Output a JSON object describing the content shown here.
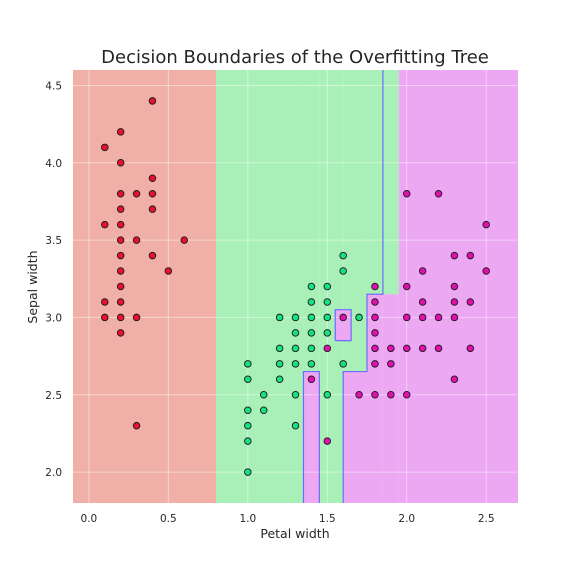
{
  "chart_data": {
    "type": "scatter",
    "title": "Decision Boundaries of the Overfitting Tree",
    "xlabel": "Petal width",
    "ylabel": "Sepal width",
    "xlim": [
      -0.1,
      2.7
    ],
    "ylim": [
      1.8,
      4.6
    ],
    "xticks": [
      "0.0",
      "0.5",
      "1.0",
      "1.5",
      "2.0",
      "2.5"
    ],
    "yticks": [
      "2.0",
      "2.5",
      "3.0",
      "3.5",
      "4.0",
      "4.5"
    ],
    "grid": true,
    "region_colors": {
      "class0": "#f0b0a8",
      "class1": "#a8f0b8",
      "class2": "#eca8f2"
    },
    "boundary_color": "#6b6bff",
    "decision_regions": [
      {
        "class": 0,
        "x": [
          -0.1,
          0.8
        ],
        "y": [
          1.8,
          4.6
        ]
      },
      {
        "class": 1,
        "x": [
          0.8,
          1.35
        ],
        "y": [
          1.8,
          4.6
        ]
      },
      {
        "class": 1,
        "x": [
          1.35,
          1.45
        ],
        "y": [
          2.65,
          4.6
        ]
      },
      {
        "class": 2,
        "x": [
          1.35,
          1.45
        ],
        "y": [
          1.8,
          2.65
        ]
      },
      {
        "class": 1,
        "x": [
          1.45,
          1.6
        ],
        "y": [
          1.8,
          4.6
        ]
      },
      {
        "class": 1,
        "x": [
          1.6,
          1.75
        ],
        "y": [
          2.65,
          4.6
        ]
      },
      {
        "class": 2,
        "x": [
          1.6,
          1.75
        ],
        "y": [
          1.8,
          2.65
        ]
      },
      {
        "class": 2,
        "x": [
          1.55,
          1.65
        ],
        "y": [
          2.85,
          3.05
        ]
      },
      {
        "class": 1,
        "x": [
          1.75,
          1.85
        ],
        "y": [
          3.15,
          4.6
        ]
      },
      {
        "class": 2,
        "x": [
          1.75,
          1.85
        ],
        "y": [
          1.8,
          3.15
        ]
      },
      {
        "class": 1,
        "x": [
          1.85,
          1.95
        ],
        "y": [
          3.15,
          4.6
        ]
      },
      {
        "class": 2,
        "x": [
          1.85,
          1.95
        ],
        "y": [
          1.8,
          3.15
        ]
      },
      {
        "class": 2,
        "x": [
          1.95,
          2.7
        ],
        "y": [
          1.8,
          4.6
        ]
      }
    ],
    "series": [
      {
        "class": 0,
        "color": "#e8102e",
        "points": [
          [
            0.4,
            4.4
          ],
          [
            0.2,
            4.2
          ],
          [
            0.1,
            4.1
          ],
          [
            0.2,
            4.0
          ],
          [
            0.4,
            3.9
          ],
          [
            0.2,
            3.8
          ],
          [
            0.3,
            3.8
          ],
          [
            0.4,
            3.8
          ],
          [
            0.2,
            3.7
          ],
          [
            0.4,
            3.7
          ],
          [
            0.1,
            3.6
          ],
          [
            0.2,
            3.6
          ],
          [
            0.2,
            3.5
          ],
          [
            0.3,
            3.5
          ],
          [
            0.6,
            3.5
          ],
          [
            0.2,
            3.4
          ],
          [
            0.4,
            3.4
          ],
          [
            0.2,
            3.3
          ],
          [
            0.5,
            3.3
          ],
          [
            0.2,
            3.2
          ],
          [
            0.1,
            3.1
          ],
          [
            0.2,
            3.1
          ],
          [
            0.1,
            3.0
          ],
          [
            0.2,
            3.0
          ],
          [
            0.3,
            3.0
          ],
          [
            0.2,
            2.9
          ],
          [
            0.3,
            2.3
          ]
        ]
      },
      {
        "class": 1,
        "color": "#18e080",
        "points": [
          [
            1.6,
            3.4
          ],
          [
            1.6,
            3.3
          ],
          [
            1.4,
            3.2
          ],
          [
            1.5,
            3.2
          ],
          [
            1.4,
            3.1
          ],
          [
            1.5,
            3.1
          ],
          [
            1.3,
            3.0
          ],
          [
            1.2,
            3.0
          ],
          [
            1.4,
            3.0
          ],
          [
            1.5,
            3.0
          ],
          [
            1.7,
            3.0
          ],
          [
            1.3,
            2.9
          ],
          [
            1.4,
            2.9
          ],
          [
            1.5,
            2.9
          ],
          [
            1.3,
            2.8
          ],
          [
            1.4,
            2.8
          ],
          [
            1.2,
            2.8
          ],
          [
            1.1,
            2.5
          ],
          [
            1.2,
            2.6
          ],
          [
            1.2,
            2.7
          ],
          [
            1.3,
            2.7
          ],
          [
            1.4,
            2.7
          ],
          [
            1.6,
            2.7
          ],
          [
            1.0,
            2.7
          ],
          [
            1.0,
            2.6
          ],
          [
            1.3,
            2.5
          ],
          [
            1.5,
            2.5
          ],
          [
            1.0,
            2.4
          ],
          [
            1.1,
            2.4
          ],
          [
            1.0,
            2.3
          ],
          [
            1.3,
            2.3
          ],
          [
            1.0,
            2.2
          ],
          [
            1.0,
            2.0
          ]
        ]
      },
      {
        "class": 2,
        "color": "#e010b0",
        "points": [
          [
            2.0,
            3.8
          ],
          [
            2.2,
            3.8
          ],
          [
            2.5,
            3.6
          ],
          [
            2.3,
            3.4
          ],
          [
            2.4,
            3.4
          ],
          [
            2.1,
            3.3
          ],
          [
            2.5,
            3.3
          ],
          [
            1.8,
            3.2
          ],
          [
            2.0,
            3.2
          ],
          [
            2.3,
            3.2
          ],
          [
            1.8,
            3.1
          ],
          [
            2.1,
            3.1
          ],
          [
            2.3,
            3.1
          ],
          [
            2.4,
            3.1
          ],
          [
            1.6,
            3.0
          ],
          [
            1.8,
            3.0
          ],
          [
            2.0,
            3.0
          ],
          [
            2.1,
            3.0
          ],
          [
            2.2,
            3.0
          ],
          [
            2.3,
            3.0
          ],
          [
            1.8,
            2.9
          ],
          [
            1.8,
            2.8
          ],
          [
            1.5,
            2.8
          ],
          [
            1.9,
            2.8
          ],
          [
            2.0,
            2.8
          ],
          [
            2.1,
            2.8
          ],
          [
            2.2,
            2.8
          ],
          [
            2.4,
            2.8
          ],
          [
            1.8,
            2.7
          ],
          [
            1.9,
            2.7
          ],
          [
            1.4,
            2.6
          ],
          [
            2.3,
            2.6
          ],
          [
            1.7,
            2.5
          ],
          [
            1.8,
            2.5
          ],
          [
            1.9,
            2.5
          ],
          [
            2.0,
            2.5
          ],
          [
            1.5,
            2.2
          ]
        ]
      }
    ]
  }
}
